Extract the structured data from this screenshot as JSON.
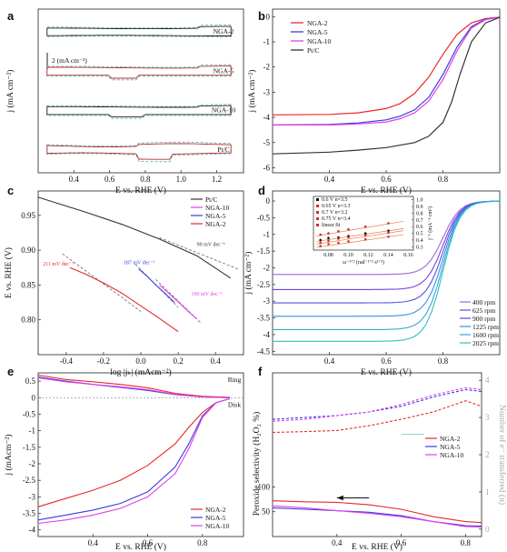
{
  "figure": {
    "panel_letters": [
      "a",
      "b",
      "c",
      "d",
      "e",
      "f"
    ]
  },
  "colors": {
    "NGA-2": "#e8282b",
    "NGA-5": "#3a3ae0",
    "NGA-10": "#e23fe6",
    "Pt/C": "#333333",
    "fit": "#777777"
  },
  "chart_data": [
    {
      "panel": "a",
      "type": "line",
      "xlabel": "E vs. RHE (V)",
      "ylabel": "j (mA cm⁻²)",
      "xlim": [
        0.2,
        1.35
      ],
      "xticks": [
        0.4,
        0.6,
        0.8,
        1.0,
        1.2
      ],
      "scale_bar": "2 (mA cm⁻²)",
      "curve_labels": [
        "NGA-2",
        "NGA-5",
        "NGA-10",
        "Pt/C"
      ],
      "series": [
        {
          "name": "NGA-2",
          "cv": true
        },
        {
          "name": "NGA-5",
          "cv": true
        },
        {
          "name": "NGA-10",
          "cv": true
        },
        {
          "name": "Pt/C",
          "cv": true
        }
      ]
    },
    {
      "panel": "b",
      "type": "line",
      "xlabel": "E vs. RHE (V)",
      "ylabel": "j (mA cm⁻²)",
      "xlim": [
        0.2,
        1.0
      ],
      "ylim": [
        -6.2,
        0.3
      ],
      "xticks": [
        0.4,
        0.6,
        0.8
      ],
      "yticks": [
        0,
        -1,
        -2,
        -3,
        -4,
        -5,
        -6
      ],
      "legend": "top-left",
      "series": [
        {
          "name": "NGA-2",
          "x": [
            0.2,
            0.4,
            0.5,
            0.6,
            0.65,
            0.7,
            0.75,
            0.8,
            0.85,
            0.9,
            0.95,
            1.0
          ],
          "y": [
            -3.9,
            -3.88,
            -3.82,
            -3.65,
            -3.45,
            -3.05,
            -2.4,
            -1.5,
            -0.7,
            -0.25,
            -0.08,
            -0.02
          ]
        },
        {
          "name": "NGA-5",
          "x": [
            0.2,
            0.4,
            0.5,
            0.6,
            0.65,
            0.7,
            0.75,
            0.8,
            0.85,
            0.9,
            0.95,
            1.0
          ],
          "y": [
            -4.3,
            -4.28,
            -4.22,
            -4.1,
            -3.95,
            -3.7,
            -3.2,
            -2.3,
            -1.2,
            -0.4,
            -0.1,
            -0.02
          ]
        },
        {
          "name": "NGA-10",
          "x": [
            0.2,
            0.4,
            0.5,
            0.6,
            0.65,
            0.7,
            0.75,
            0.8,
            0.85,
            0.9,
            0.95,
            1.0
          ],
          "y": [
            -4.3,
            -4.3,
            -4.26,
            -4.18,
            -4.05,
            -3.82,
            -3.35,
            -2.5,
            -1.35,
            -0.45,
            -0.12,
            -0.02
          ]
        },
        {
          "name": "Pt/C",
          "x": [
            0.2,
            0.4,
            0.5,
            0.6,
            0.7,
            0.75,
            0.8,
            0.83,
            0.86,
            0.9,
            0.95,
            1.0
          ],
          "y": [
            -5.45,
            -5.38,
            -5.3,
            -5.2,
            -5.0,
            -4.75,
            -4.2,
            -3.4,
            -2.3,
            -1.0,
            -0.25,
            -0.03
          ]
        }
      ]
    },
    {
      "panel": "c",
      "type": "line",
      "xlabel": "log |jₖ| (mAcm⁻²)",
      "ylabel": "E vs. RHE (V)",
      "xlim": [
        -0.55,
        0.55
      ],
      "ylim": [
        0.75,
        0.985
      ],
      "xticks": [
        -0.4,
        -0.2,
        0.0,
        0.2,
        0.4
      ],
      "yticks": [
        0.8,
        0.85,
        0.9,
        0.95
      ],
      "legend": "top-right",
      "annotations": [
        "211 mV dec⁻¹",
        "187 mV dec⁻¹",
        "190 mV dec⁻¹",
        "90 mV dec⁻¹"
      ],
      "series": [
        {
          "name": "Pt/C",
          "x": [
            -0.55,
            -0.3,
            -0.1,
            0.1,
            0.3,
            0.48
          ],
          "y": [
            0.976,
            0.955,
            0.937,
            0.916,
            0.892,
            0.86
          ]
        },
        {
          "name": "NGA-10",
          "x": [
            0.1,
            0.15,
            0.2,
            0.25,
            0.3
          ],
          "y": [
            0.85,
            0.838,
            0.826,
            0.813,
            0.801
          ]
        },
        {
          "name": "NGA-5",
          "x": [
            -0.01,
            0.04,
            0.08,
            0.13,
            0.18
          ],
          "y": [
            0.873,
            0.861,
            0.85,
            0.838,
            0.825
          ]
        },
        {
          "name": "NGA-2",
          "x": [
            -0.38,
            -0.3,
            -0.2,
            -0.1,
            0.0,
            0.1,
            0.2
          ],
          "y": [
            0.875,
            0.866,
            0.853,
            0.838,
            0.82,
            0.802,
            0.783
          ]
        }
      ]
    },
    {
      "panel": "d",
      "type": "line",
      "xlabel": "E vs. RHE (V)",
      "ylabel": "j (mA cm⁻²)",
      "xlim": [
        0.2,
        1.0
      ],
      "ylim": [
        -4.6,
        0.3
      ],
      "xticks": [
        0.4,
        0.6,
        0.8
      ],
      "yticks": [
        0,
        -0.5,
        -1,
        -1.5,
        -2,
        -2.5,
        -3,
        -3.5,
        -4,
        -4.5
      ],
      "legend": "bottom-right",
      "series": [
        {
          "name": "400 rpm",
          "color": "#9b6bd6",
          "plateau": -2.2
        },
        {
          "name": "625 rpm",
          "color": "#7b3fd8",
          "plateau": -2.65
        },
        {
          "name": "900 rpm",
          "color": "#4f52e0",
          "plateau": -3.05
        },
        {
          "name": "1225 rpm",
          "color": "#3f8be8",
          "plateau": -3.45
        },
        {
          "name": "1600 rpm",
          "color": "#35a6d8",
          "plateau": -3.85
        },
        {
          "name": "2025 rpm",
          "color": "#2fbfc0",
          "plateau": -4.2
        }
      ],
      "inset": {
        "xlabel": "ω⁻¹ᐟ² (rad⁻¹ᐟ² s¹ᐟ²)",
        "ylabel": "j⁻¹ (mA⁻¹ cm²)",
        "xticks": [
          0.08,
          0.1,
          0.12,
          0.14,
          0.16
        ],
        "yticks": [
          0.3,
          0.4,
          0.5,
          0.6,
          0.7,
          0.8,
          0.9,
          1.0
        ],
        "xlim": [
          0.065,
          0.165
        ],
        "ylim": [
          0.25,
          1.05
        ],
        "legend": [
          "0.6  V  n=3.5",
          "0.65 V  n=3.3",
          "0.7  V  n=3.2",
          "0.75 V  n=3.4",
          "linear fit"
        ],
        "series": [
          {
            "name": "0.6  V  n=3.5",
            "color": "#111111",
            "x": [
              0.072,
              0.08,
              0.09,
              0.1,
              0.117,
              0.14
            ],
            "y": [
              0.4,
              0.43,
              0.44,
              0.46,
              0.5,
              0.54
            ]
          },
          {
            "name": "0.65 V  n=3.3",
            "color": "#d42a2a",
            "x": [
              0.072,
              0.08,
              0.09,
              0.1,
              0.117,
              0.14
            ],
            "y": [
              0.48,
              0.5,
              0.53,
              0.56,
              0.6,
              0.65
            ]
          },
          {
            "name": "0.7  V  n=3.2",
            "color": "#d42a2a",
            "x": [
              0.072,
              0.08,
              0.09,
              0.1,
              0.117,
              0.14
            ],
            "y": [
              0.36,
              0.39,
              0.42,
              0.44,
              0.47,
              0.51
            ]
          },
          {
            "name": "0.75 V  n=3.4",
            "color": "#d42a2a",
            "x": [
              0.072,
              0.08,
              0.09,
              0.1,
              0.117,
              0.14
            ],
            "y": [
              0.31,
              0.34,
              0.36,
              0.38,
              0.41,
              0.45
            ]
          }
        ]
      }
    },
    {
      "panel": "e",
      "type": "line",
      "xlabel": "E vs. RHE (V)",
      "ylabel": "j (mAcm⁻²)",
      "xlim": [
        0.2,
        0.95
      ],
      "ylim": [
        -4.2,
        0.75
      ],
      "xticks": [
        0.4,
        0.6,
        0.8
      ],
      "yticks": [
        0.5,
        0,
        -0.5,
        -1,
        -1.5,
        -2,
        -2.5,
        -3,
        -3.5,
        -4
      ],
      "labels": [
        "Ring",
        "Disk"
      ],
      "legend": "bottom-right",
      "series": [
        {
          "name": "NGA-2",
          "ring_x": [
            0.2,
            0.3,
            0.4,
            0.5,
            0.6,
            0.7,
            0.8,
            0.9
          ],
          "ring_y": [
            0.68,
            0.55,
            0.48,
            0.4,
            0.3,
            0.13,
            0.04,
            0.01
          ],
          "disk_x": [
            0.2,
            0.3,
            0.4,
            0.5,
            0.6,
            0.7,
            0.75,
            0.8,
            0.85,
            0.9
          ],
          "disk_y": [
            -3.3,
            -3.05,
            -2.8,
            -2.5,
            -2.05,
            -1.4,
            -0.9,
            -0.45,
            -0.15,
            -0.03
          ]
        },
        {
          "name": "NGA-5",
          "ring_x": [
            0.2,
            0.3,
            0.4,
            0.5,
            0.6,
            0.7,
            0.8,
            0.9
          ],
          "ring_y": [
            0.62,
            0.5,
            0.4,
            0.31,
            0.22,
            0.09,
            0.02,
            0.0
          ],
          "disk_x": [
            0.2,
            0.3,
            0.4,
            0.5,
            0.6,
            0.7,
            0.75,
            0.8,
            0.85,
            0.9
          ],
          "disk_y": [
            -3.7,
            -3.55,
            -3.4,
            -3.2,
            -2.85,
            -2.1,
            -1.4,
            -0.55,
            -0.15,
            -0.03
          ]
        },
        {
          "name": "NGA-10",
          "ring_x": [
            0.2,
            0.3,
            0.4,
            0.5,
            0.6,
            0.7,
            0.8,
            0.9
          ],
          "ring_y": [
            0.6,
            0.48,
            0.4,
            0.33,
            0.24,
            0.1,
            0.02,
            0.0
          ],
          "disk_x": [
            0.2,
            0.3,
            0.4,
            0.5,
            0.6,
            0.7,
            0.75,
            0.8,
            0.85,
            0.9
          ],
          "disk_y": [
            -3.8,
            -3.7,
            -3.55,
            -3.35,
            -3.0,
            -2.3,
            -1.55,
            -0.6,
            -0.15,
            -0.03
          ]
        }
      ]
    },
    {
      "panel": "f",
      "type": "line",
      "xlabel": "E vs. RHE (V)",
      "ylabel": "Peroxide selectivity (H₂O₂ %)",
      "ylabel_right": "Number of e⁻ transferred (n)",
      "xlim": [
        0.2,
        0.85
      ],
      "xticks": [
        0.4,
        0.6,
        0.8
      ],
      "yticks_left": [
        50,
        100
      ],
      "ylim_left": [
        0,
        330
      ],
      "yticks_right": [
        0,
        1,
        2,
        3,
        4
      ],
      "ylim_right": [
        -0.2,
        4.2
      ],
      "legend": "right-middle",
      "series": [
        {
          "name": "NGA-2",
          "x": [
            0.2,
            0.3,
            0.4,
            0.5,
            0.6,
            0.7,
            0.8,
            0.85
          ],
          "peroxide": [
            72,
            70,
            69,
            64,
            55,
            40,
            30,
            28
          ],
          "n": [
            2.6,
            2.62,
            2.65,
            2.78,
            2.95,
            3.15,
            3.45,
            3.3
          ]
        },
        {
          "name": "NGA-5",
          "x": [
            0.2,
            0.3,
            0.4,
            0.5,
            0.6,
            0.7,
            0.8,
            0.85
          ],
          "peroxide": [
            58,
            55,
            52,
            49,
            42,
            30,
            22,
            21
          ],
          "n": [
            2.95,
            3.0,
            3.05,
            3.15,
            3.3,
            3.55,
            3.75,
            3.7
          ]
        },
        {
          "name": "NGA-10",
          "x": [
            0.2,
            0.3,
            0.4,
            0.5,
            0.6,
            0.7,
            0.8,
            0.85
          ],
          "peroxide": [
            62,
            58,
            52,
            47,
            40,
            30,
            20,
            19
          ],
          "n": [
            2.9,
            2.95,
            3.05,
            3.15,
            3.35,
            3.6,
            3.8,
            3.75
          ]
        }
      ]
    }
  ]
}
